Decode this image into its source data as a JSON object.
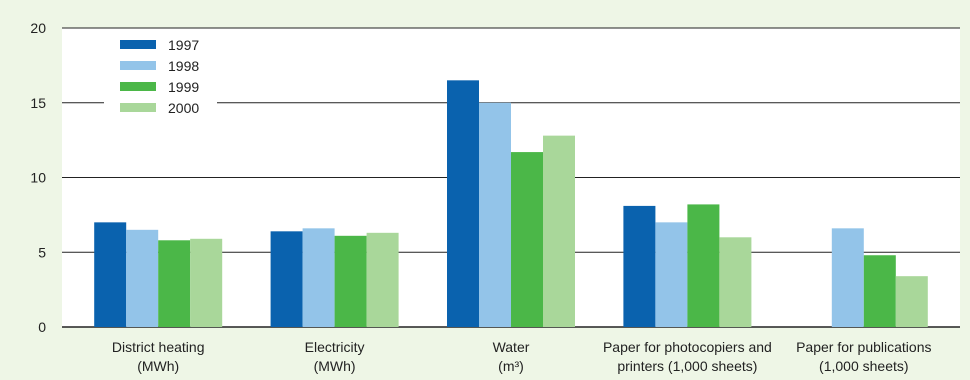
{
  "chart_data": {
    "type": "bar",
    "categories": [
      [
        "District heating",
        "(MWh)"
      ],
      [
        "Electricity",
        "(MWh)"
      ],
      [
        "Water",
        "(m³)"
      ],
      [
        "Paper for photocopiers and",
        "printers (1,000 sheets)"
      ],
      [
        "Paper for publications",
        "(1,000 sheets)"
      ]
    ],
    "series": [
      {
        "name": "1997",
        "color": "#0a62ae",
        "values": [
          7.0,
          6.4,
          16.5,
          8.1,
          null
        ]
      },
      {
        "name": "1998",
        "color": "#93c4e9",
        "values": [
          6.5,
          6.6,
          15.0,
          7.0,
          6.6
        ]
      },
      {
        "name": "1999",
        "color": "#4bb748",
        "values": [
          5.8,
          6.1,
          11.7,
          8.2,
          4.8
        ]
      },
      {
        "name": "2000",
        "color": "#a9d79a",
        "values": [
          5.9,
          6.3,
          12.8,
          6.0,
          3.4
        ]
      }
    ],
    "ylim": [
      0,
      20
    ],
    "yticks": [
      0,
      5,
      10,
      15,
      20
    ],
    "legend": "top-left",
    "grid": true,
    "colors": {
      "background": "#eef6e6",
      "plot_background": "#ffffff",
      "grid": "#222222"
    }
  }
}
